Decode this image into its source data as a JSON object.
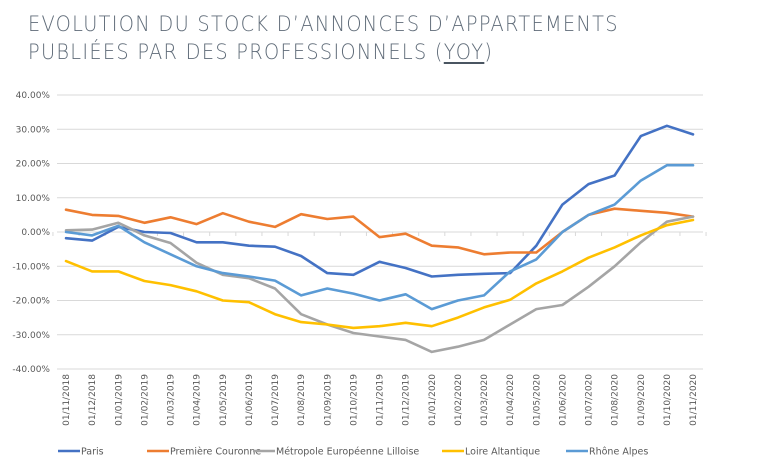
{
  "title": {
    "line1": "EVOLUTION DU STOCK D’ANNONCES D’APPARTEMENTS",
    "line2_prefix": "PUBLIÉES PAR DES PROFESSIONNELS (",
    "line2_link": "YOY",
    "line2_suffix": ")"
  },
  "chart_data": {
    "type": "line",
    "title": "EVOLUTION DU STOCK D’ANNONCES D’APPARTEMENTS PUBLIÉES PAR DES PROFESSIONNELS (YOY)",
    "xlabel": "",
    "ylabel": "",
    "ylim": [
      -40,
      40
    ],
    "yticks": [
      40,
      30,
      20,
      10,
      0,
      -10,
      -20,
      -30,
      -40
    ],
    "ytick_labels": [
      "40.00%",
      "30.00%",
      "20.00%",
      "10.00%",
      "0.00%",
      "-10.00%",
      "-20.00%",
      "-30.00%",
      "-40.00%"
    ],
    "grid": true,
    "legend_position": "bottom",
    "categories": [
      "01/11/2018",
      "01/12/2018",
      "01/01/2019",
      "01/02/2019",
      "01/03/2019",
      "01/04/2019",
      "01/05/2019",
      "01/06/2019",
      "01/07/2019",
      "01/08/2019",
      "01/09/2019",
      "01/10/2019",
      "01/11/2019",
      "01/12/2019",
      "01/01/2020",
      "01/02/2020",
      "01/03/2020",
      "01/04/2020",
      "01/05/2020",
      "01/06/2020",
      "01/07/2020",
      "01/08/2020",
      "01/09/2020",
      "01/10/2020",
      "01/11/2020"
    ],
    "series": [
      {
        "name": "Paris",
        "color": "#4472c4",
        "values": [
          -1.8,
          -2.5,
          1.5,
          0,
          -0.3,
          -3,
          -3,
          -4,
          -4.3,
          -7,
          -12,
          -12.5,
          -8.7,
          -10.5,
          -13,
          -12.5,
          -12.2,
          -12,
          -4,
          8,
          14,
          16.5,
          28,
          31,
          28.5
        ]
      },
      {
        "name": "Première Couronne",
        "color": "#ed7d31",
        "values": [
          6.5,
          5,
          4.7,
          2.7,
          4.3,
          2.3,
          5.5,
          3,
          1.5,
          5.2,
          3.8,
          4.5,
          -1.5,
          -0.5,
          -4,
          -4.5,
          -6.5,
          -6,
          -6,
          0,
          5,
          6.8,
          6.2,
          5.6,
          4.5
        ]
      },
      {
        "name": "Métropole Européenne Lilloise",
        "color": "#a5a5a5",
        "values": [
          0.5,
          0.7,
          2.7,
          -1,
          -3.2,
          -9,
          -12.5,
          -13.5,
          -16.5,
          -24,
          -27,
          -29.5,
          -30.5,
          -31.5,
          -35,
          -33.5,
          -31.5,
          -27,
          -22.5,
          -21.3,
          -16,
          -10,
          -3,
          3,
          4.5
        ]
      },
      {
        "name": "Loire Altantique",
        "color": "#ffc000",
        "values": [
          -8.5,
          -11.5,
          -11.5,
          -14.3,
          -15.5,
          -17.3,
          -20,
          -20.5,
          -24,
          -26.3,
          -27,
          -28,
          -27.5,
          -26.5,
          -27.5,
          -25,
          -22,
          -19.8,
          -15,
          -11.5,
          -7.5,
          -4.5,
          -1,
          2,
          3.5
        ]
      },
      {
        "name": "Rhône Alpes",
        "color": "#5b9bd5",
        "values": [
          0,
          -1,
          1.8,
          -3,
          -6.5,
          -10,
          -12,
          -13,
          -14.2,
          -18.5,
          -16.5,
          -18,
          -20,
          -18.2,
          -22.5,
          -20,
          -18.5,
          -11.5,
          -8,
          0,
          5,
          8,
          15,
          19.5,
          19.5
        ]
      }
    ]
  }
}
